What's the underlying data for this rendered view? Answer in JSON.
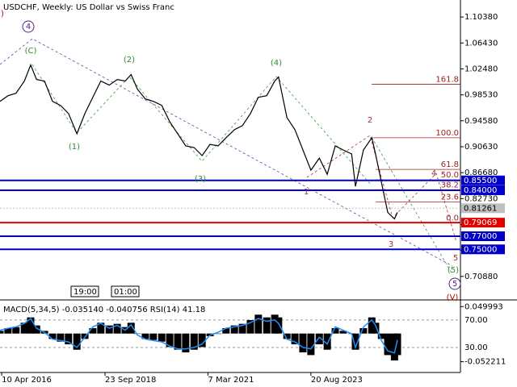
{
  "chart_data": [
    {
      "type": "line",
      "title": "USDCHF, Weekly:  US Dollar vs Swiss Franc",
      "x": [
        2016.23,
        2016.42,
        2016.61,
        2016.81,
        2016.96,
        2017.1,
        2017.29,
        2017.48,
        2017.67,
        2017.86,
        2018.06,
        2018.25,
        2018.44,
        2018.63,
        2018.83,
        2019.02,
        2019.21,
        2019.35,
        2019.5,
        2019.69,
        2019.88,
        2020.08,
        2020.27,
        2020.46,
        2020.65,
        2020.85,
        2021.04,
        2021.23,
        2021.42,
        2021.61,
        2021.81,
        2022.0,
        2022.19,
        2022.38,
        2022.58,
        2022.77,
        2022.86,
        2023.06,
        2023.25,
        2023.44,
        2023.63,
        2023.83,
        2024.02,
        2024.21,
        2024.4,
        2024.6,
        2024.69,
        2024.88,
        2025.08,
        2025.17,
        2025.31,
        2025.46,
        2025.62,
        2025.69
      ],
      "series": [
        {
          "color": "#000000",
          "values": [
            0.9754,
            0.984,
            0.9877,
            1.0063,
            1.0309,
            1.0087,
            1.0063,
            0.9754,
            0.9692,
            0.9569,
            0.926,
            0.9569,
            0.9816,
            1.0063,
            1.0001,
            1.0087,
            1.0063,
            1.0161,
            0.9939,
            0.9791,
            0.9754,
            0.9692,
            0.9445,
            0.926,
            0.9075,
            0.905,
            0.8927,
            0.91,
            0.9075,
            0.9199,
            0.9322,
            0.9384,
            0.9569,
            0.9816,
            0.984,
            1.0063,
            1.0124,
            0.9507,
            0.9322,
            0.9013,
            0.8705,
            0.889,
            0.8643,
            0.9075,
            0.9013,
            0.8952,
            0.8458,
            0.9013,
            0.9199,
            0.8952,
            0.852,
            0.8063,
            0.7964,
            0.8063
          ]
        }
      ],
      "xlim": [
        2016.23,
        2027.19
      ],
      "ylim": [
        0.673,
        1.1297
      ],
      "yticks": [
        {
          "value": 1.1038,
          "label": "1.10380"
        },
        {
          "value": 1.0643,
          "label": "1.06430"
        },
        {
          "value": 1.0248,
          "label": "1.02480"
        },
        {
          "value": 0.9853,
          "label": "0.98530"
        },
        {
          "value": 0.9458,
          "label": "0.94580"
        },
        {
          "value": 0.9063,
          "label": "0.90630"
        },
        {
          "value": 0.8668,
          "label": "0.86680"
        },
        {
          "value": 0.8273,
          "label": "0.82730"
        },
        {
          "value": 0.7878,
          "label": "0.78780"
        },
        {
          "value": 0.7483,
          "label": "0.74830"
        },
        {
          "value": 0.7088,
          "label": "0.70880"
        }
      ],
      "levels": [
        {
          "value": 0.855,
          "label": "0.85500",
          "color": "#0000c8"
        },
        {
          "value": 0.84,
          "label": "0.84000",
          "color": "#0000c8"
        },
        {
          "value": 0.81261,
          "label": "0.81261",
          "color": "#c0c0c0"
        },
        {
          "value": 0.79069,
          "label": "0.79069",
          "color": "#e00000"
        },
        {
          "value": 0.77,
          "label": "0.77000",
          "color": "#0000c8"
        },
        {
          "value": 0.75,
          "label": "0.75000",
          "color": "#0000c8"
        }
      ],
      "fib_levels": [
        {
          "value": 1.0013,
          "label": "161.8"
        },
        {
          "value": 0.9199,
          "label": "100.0"
        },
        {
          "value": 0.8717,
          "label": "61.8"
        },
        {
          "value": 0.8557,
          "label": "50.0"
        },
        {
          "value": 0.8408,
          "label": "38.2"
        },
        {
          "value": 0.8223,
          "label": "23.6"
        },
        {
          "value": 0.7902,
          "label": "0.0"
        }
      ],
      "fib_color": "#a02020",
      "annotations": [
        {
          "text": ")",
          "color": "#c00000"
        },
        {
          "text": "4",
          "color": "#502080",
          "circled": true
        },
        {
          "text": "(C)",
          "color": "#2e8b2e"
        },
        {
          "text": "(1)",
          "color": "#2e8b2e"
        },
        {
          "text": "(2)",
          "color": "#2e8b2e"
        },
        {
          "text": "(3)",
          "color": "#2e8b2e"
        },
        {
          "text": "(4)",
          "color": "#2e8b2e"
        },
        {
          "text": "1",
          "color": "#a03030"
        },
        {
          "text": "2",
          "color": "#a03030"
        },
        {
          "text": "3",
          "color": "#a03030"
        },
        {
          "text": "4",
          "color": "#a03030"
        },
        {
          "text": "5",
          "color": "#a03030"
        },
        {
          "text": "(5)",
          "color": "#2e8b2e"
        },
        {
          "text": "5",
          "color": "#502080",
          "circled": true
        },
        {
          "text": "(V)",
          "color": "#c00000"
        }
      ],
      "time_labels": [
        "19:00",
        "01:00"
      ]
    },
    {
      "type": "bar",
      "title": "MACD(5,34,5) -0.035140 -0.040756 RSI(14) 41.18",
      "series": [
        {
          "color": "#000000",
          "values": [
            0.005,
            0.01,
            0.012,
            0.02,
            0.03,
            0.015,
            0.005,
            -0.01,
            -0.015,
            -0.02,
            -0.03,
            -0.01,
            0.01,
            0.02,
            0.015,
            0.018,
            0.012,
            0.02,
            0.0,
            -0.01,
            -0.012,
            -0.015,
            -0.025,
            -0.03,
            -0.035,
            -0.03,
            -0.025,
            -0.005,
            0.0,
            0.01,
            0.015,
            0.018,
            0.025,
            0.035,
            0.03,
            0.035,
            0.03,
            -0.01,
            -0.02,
            -0.035,
            -0.04,
            -0.02,
            -0.03,
            0.01,
            0.005,
            0.0,
            -0.03,
            0.01,
            0.03,
            0.02,
            -0.01,
            -0.04,
            -0.05,
            -0.04
          ]
        },
        {
          "color": "#1e90ff",
          "axis": "y2",
          "values": [
            55,
            58,
            60,
            65,
            72,
            58,
            52,
            42,
            40,
            38,
            30,
            45,
            60,
            65,
            58,
            62,
            55,
            63,
            48,
            42,
            40,
            38,
            32,
            28,
            28,
            30,
            35,
            48,
            52,
            58,
            60,
            62,
            66,
            72,
            68,
            70,
            65,
            42,
            38,
            30,
            28,
            45,
            35,
            60,
            55,
            50,
            30,
            60,
            70,
            62,
            40,
            25,
            22,
            41
          ]
        }
      ],
      "xlim": [
        2016.23,
        2027.19
      ],
      "xticks": [
        {
          "value": 2016.27,
          "label": "10 Apr 2016"
        },
        {
          "value": 2018.73,
          "label": "23 Sep 2018"
        },
        {
          "value": 2021.18,
          "label": "7 Mar 2021"
        },
        {
          "value": 2023.63,
          "label": "20 Aug 2023"
        }
      ],
      "ylim": [
        -0.0723,
        0.0624
      ],
      "yticks": [
        0.049993,
        -0.052211
      ],
      "y2lim": [
        -6.4,
        99.1
      ],
      "y2ticks": [
        {
          "value": 70,
          "label": "70.00"
        },
        {
          "value": 30,
          "label": "30.00"
        }
      ]
    }
  ]
}
